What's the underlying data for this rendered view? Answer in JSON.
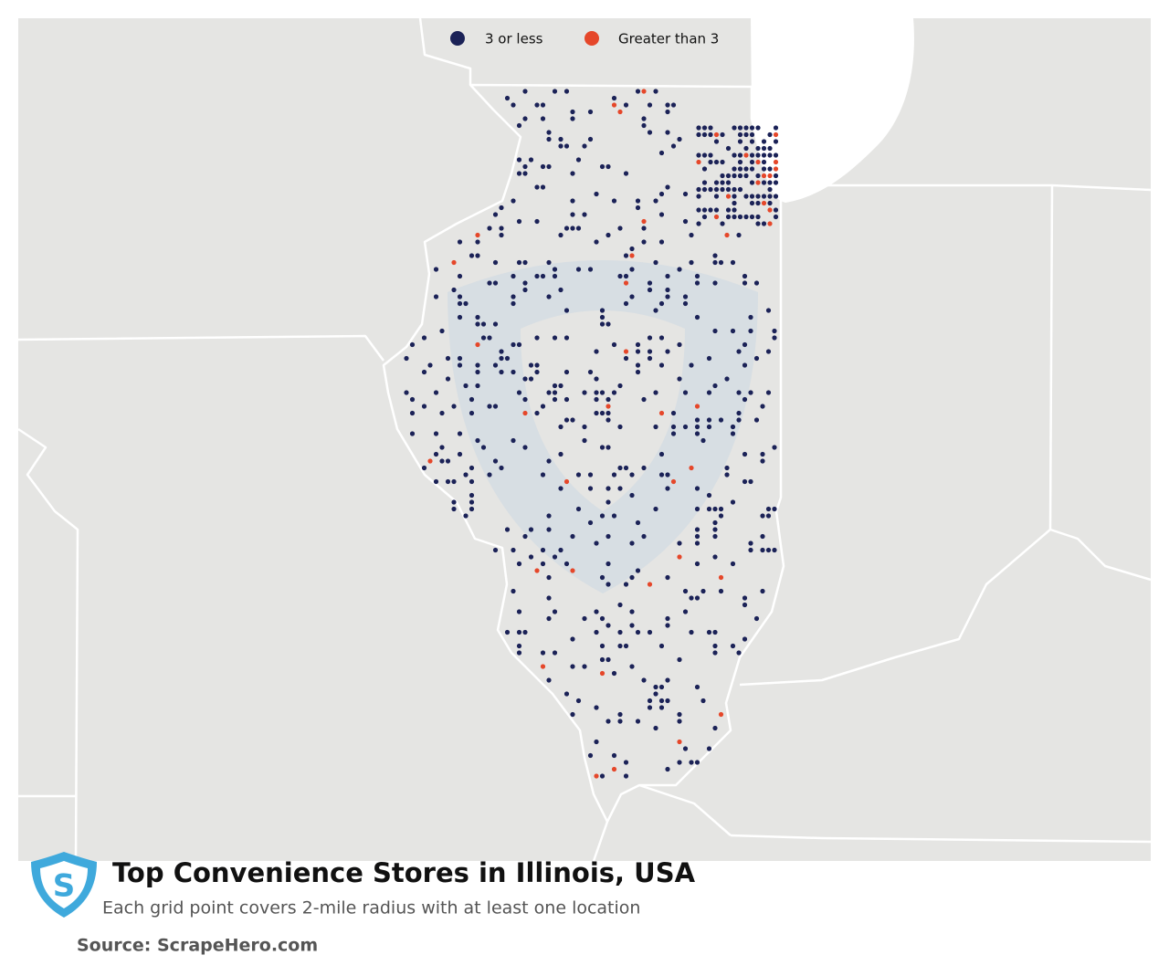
{
  "legend": [
    {
      "label": "3 or less",
      "color": "#1b2257"
    },
    {
      "label": "Greater than 3",
      "color": "#e5472a"
    }
  ],
  "title": "Top Convenience Stores in Illinois, USA",
  "subtitle": "Each grid point covers 2-mile radius with at least one location",
  "source": "Source: ScrapeHero.com"
}
